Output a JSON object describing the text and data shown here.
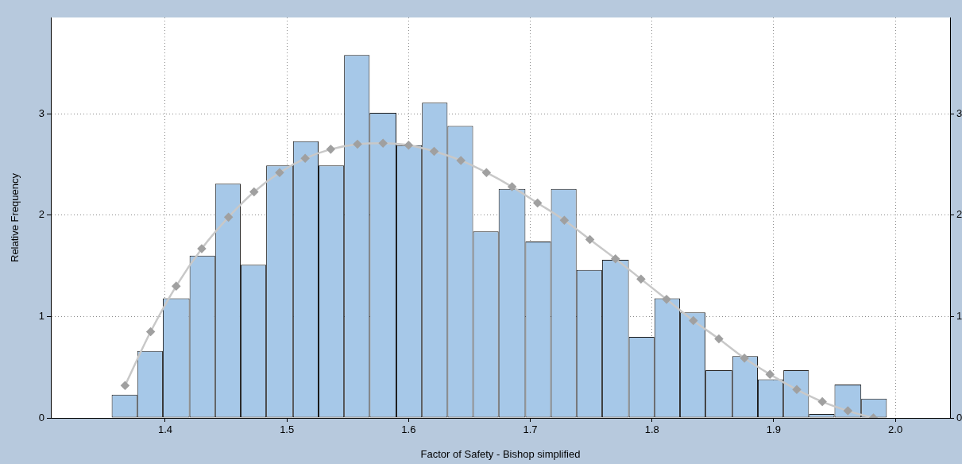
{
  "chart_data": {
    "type": "histogram",
    "xlabel": "Factor of Safety - Bishop simplified",
    "ylabel": "Relative Frequency",
    "bins": [
      1.356,
      1.377,
      1.398,
      1.42,
      1.441,
      1.462,
      1.483,
      1.505,
      1.526,
      1.547,
      1.568,
      1.59,
      1.611,
      1.632,
      1.653,
      1.674,
      1.696,
      1.717,
      1.738,
      1.759,
      1.781,
      1.802,
      1.823,
      1.844,
      1.866,
      1.887,
      1.908,
      1.929,
      1.95,
      1.972,
      1.993
    ],
    "color": "#a6c8e8",
    "values": [
      0.23,
      0.66,
      1.18,
      1.6,
      2.31,
      1.51,
      2.49,
      2.73,
      2.49,
      3.58,
      3.01,
      2.69,
      3.11,
      2.88,
      1.84,
      2.26,
      1.74,
      2.26,
      1.46,
      1.56,
      0.8,
      1.18,
      1.04,
      0.47,
      0.61,
      0.38,
      0.47,
      0.04,
      0.33,
      0.19
    ],
    "series": [
      {
        "type": "line",
        "color": "#c8c8c8",
        "marker": "diamond",
        "x": [
          1.367,
          1.388,
          1.409,
          1.43,
          1.452,
          1.473,
          1.494,
          1.515,
          1.536,
          1.558,
          1.579,
          1.6,
          1.621,
          1.643,
          1.664,
          1.685,
          1.706,
          1.728,
          1.749,
          1.77,
          1.791,
          1.812,
          1.834,
          1.855,
          1.876,
          1.897,
          1.919,
          1.94,
          1.961,
          1.982
        ],
        "values": [
          0.32,
          0.85,
          1.3,
          1.67,
          1.98,
          2.23,
          2.42,
          2.56,
          2.65,
          2.7,
          2.71,
          2.69,
          2.63,
          2.54,
          2.42,
          2.28,
          2.12,
          1.95,
          1.76,
          1.57,
          1.37,
          1.17,
          0.96,
          0.78,
          0.59,
          0.43,
          0.28,
          0.16,
          0.07,
          0.0
        ]
      }
    ],
    "xlim": [
      1.306,
      2.045
    ],
    "xticks": [
      1.4,
      1.5,
      1.6,
      1.7,
      1.8,
      1.9,
      {
        "value": 2.0,
        "label": "2.0"
      }
    ],
    "ylim": [
      0,
      3.95
    ],
    "yticks": [
      0,
      1,
      2,
      3
    ],
    "y2lim": [
      0,
      3.95
    ],
    "y2ticks": [
      0,
      1,
      2,
      3
    ],
    "grid": true,
    "legend": false
  }
}
